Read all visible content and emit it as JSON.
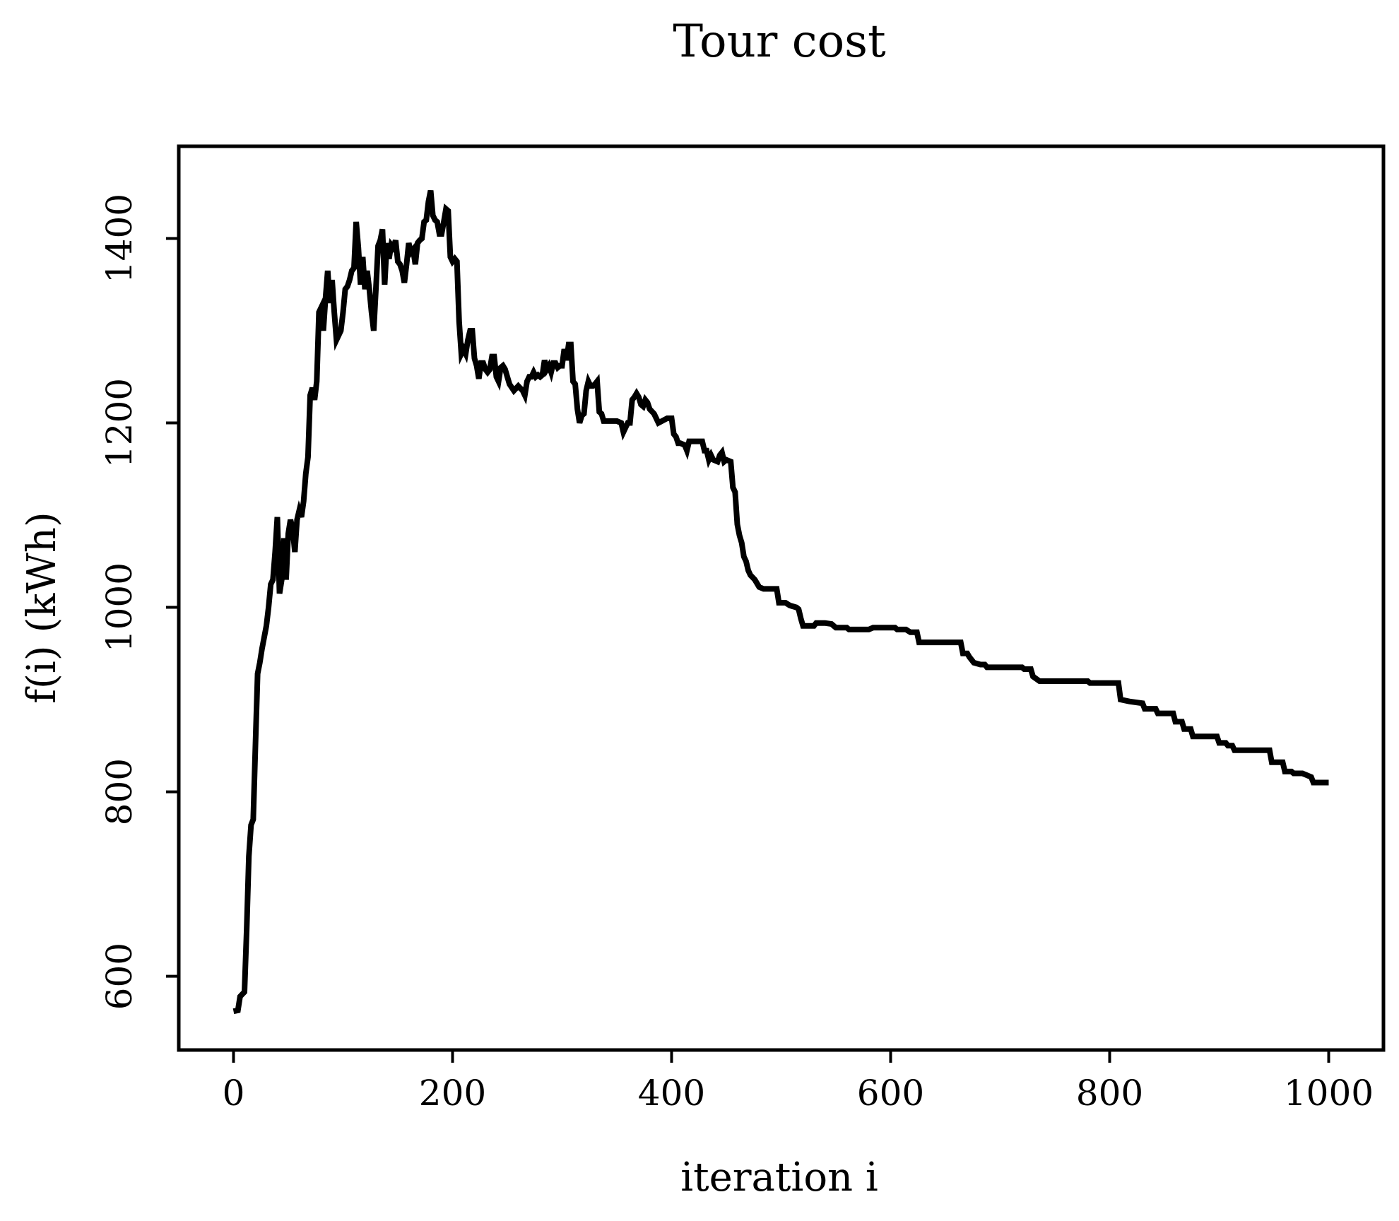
{
  "chart_data": {
    "type": "line",
    "title": "Tour cost",
    "xlabel": "iteration i",
    "ylabel": "f(i) (kWh)",
    "xlim": [
      -50,
      1050
    ],
    "ylim": [
      520,
      1500
    ],
    "xticks": [
      0,
      200,
      400,
      600,
      800,
      1000
    ],
    "yticks": [
      600,
      800,
      1000,
      1200,
      1400
    ],
    "grid": false,
    "colors": {
      "line": "#000000",
      "axes": "#000000"
    },
    "series": [
      {
        "points": [
          [
            0,
            562
          ],
          [
            4,
            563
          ],
          [
            6,
            578
          ],
          [
            10,
            583
          ],
          [
            12,
            650
          ],
          [
            14,
            730
          ],
          [
            16,
            764
          ],
          [
            18,
            770
          ],
          [
            20,
            850
          ],
          [
            22,
            928
          ],
          [
            24,
            940
          ],
          [
            26,
            955
          ],
          [
            30,
            980
          ],
          [
            32,
            1000
          ],
          [
            34,
            1025
          ],
          [
            36,
            1030
          ],
          [
            38,
            1060
          ],
          [
            40,
            1098
          ],
          [
            42,
            1015
          ],
          [
            44,
            1030
          ],
          [
            46,
            1075
          ],
          [
            48,
            1030
          ],
          [
            50,
            1080
          ],
          [
            52,
            1095
          ],
          [
            54,
            1085
          ],
          [
            56,
            1060
          ],
          [
            58,
            1095
          ],
          [
            60,
            1105
          ],
          [
            62,
            1098
          ],
          [
            64,
            1115
          ],
          [
            66,
            1145
          ],
          [
            68,
            1163
          ],
          [
            70,
            1230
          ],
          [
            72,
            1238
          ],
          [
            74,
            1225
          ],
          [
            76,
            1245
          ],
          [
            78,
            1320
          ],
          [
            80,
            1325
          ],
          [
            82,
            1300
          ],
          [
            84,
            1335
          ],
          [
            86,
            1365
          ],
          [
            88,
            1330
          ],
          [
            90,
            1355
          ],
          [
            92,
            1320
          ],
          [
            94,
            1290
          ],
          [
            96,
            1295
          ],
          [
            98,
            1300
          ],
          [
            100,
            1320
          ],
          [
            102,
            1345
          ],
          [
            104,
            1348
          ],
          [
            106,
            1355
          ],
          [
            108,
            1365
          ],
          [
            110,
            1368
          ],
          [
            112,
            1418
          ],
          [
            114,
            1390
          ],
          [
            116,
            1350
          ],
          [
            118,
            1380
          ],
          [
            120,
            1345
          ],
          [
            122,
            1365
          ],
          [
            124,
            1345
          ],
          [
            126,
            1320
          ],
          [
            128,
            1300
          ],
          [
            130,
            1345
          ],
          [
            132,
            1392
          ],
          [
            134,
            1398
          ],
          [
            136,
            1410
          ],
          [
            138,
            1350
          ],
          [
            140,
            1395
          ],
          [
            142,
            1378
          ],
          [
            144,
            1393
          ],
          [
            146,
            1390
          ],
          [
            148,
            1398
          ],
          [
            150,
            1375
          ],
          [
            152,
            1372
          ],
          [
            154,
            1365
          ],
          [
            156,
            1352
          ],
          [
            158,
            1372
          ],
          [
            160,
            1395
          ],
          [
            162,
            1385
          ],
          [
            164,
            1388
          ],
          [
            166,
            1372
          ],
          [
            168,
            1395
          ],
          [
            170,
            1398
          ],
          [
            172,
            1400
          ],
          [
            174,
            1418
          ],
          [
            176,
            1420
          ],
          [
            178,
            1440
          ],
          [
            180,
            1452
          ],
          [
            182,
            1425
          ],
          [
            184,
            1420
          ],
          [
            186,
            1418
          ],
          [
            188,
            1405
          ],
          [
            190,
            1405
          ],
          [
            192,
            1418
          ],
          [
            194,
            1432
          ],
          [
            196,
            1430
          ],
          [
            198,
            1380
          ],
          [
            200,
            1375
          ],
          [
            202,
            1378
          ],
          [
            204,
            1375
          ],
          [
            206,
            1310
          ],
          [
            208,
            1275
          ],
          [
            210,
            1280
          ],
          [
            212,
            1275
          ],
          [
            214,
            1290
          ],
          [
            216,
            1300
          ],
          [
            218,
            1300
          ],
          [
            220,
            1270
          ],
          [
            222,
            1262
          ],
          [
            224,
            1248
          ],
          [
            226,
            1265
          ],
          [
            228,
            1265
          ],
          [
            230,
            1258
          ],
          [
            232,
            1255
          ],
          [
            234,
            1258
          ],
          [
            236,
            1272
          ],
          [
            238,
            1272
          ],
          [
            240,
            1250
          ],
          [
            242,
            1245
          ],
          [
            244,
            1260
          ],
          [
            246,
            1262
          ],
          [
            248,
            1258
          ],
          [
            250,
            1250
          ],
          [
            252,
            1242
          ],
          [
            256,
            1235
          ],
          [
            260,
            1240
          ],
          [
            264,
            1235
          ],
          [
            266,
            1230
          ],
          [
            268,
            1245
          ],
          [
            270,
            1250
          ],
          [
            272,
            1250
          ],
          [
            274,
            1255
          ],
          [
            276,
            1250
          ],
          [
            278,
            1252
          ],
          [
            280,
            1250
          ],
          [
            282,
            1252
          ],
          [
            284,
            1268
          ],
          [
            286,
            1258
          ],
          [
            288,
            1262
          ],
          [
            290,
            1255
          ],
          [
            292,
            1265
          ],
          [
            294,
            1265
          ],
          [
            296,
            1260
          ],
          [
            298,
            1262
          ],
          [
            300,
            1262
          ],
          [
            302,
            1280
          ],
          [
            304,
            1268
          ],
          [
            306,
            1285
          ],
          [
            308,
            1285
          ],
          [
            310,
            1245
          ],
          [
            312,
            1242
          ],
          [
            314,
            1215
          ],
          [
            316,
            1200
          ],
          [
            318,
            1208
          ],
          [
            320,
            1210
          ],
          [
            322,
            1235
          ],
          [
            324,
            1245
          ],
          [
            326,
            1240
          ],
          [
            328,
            1240
          ],
          [
            330,
            1242
          ],
          [
            332,
            1245
          ],
          [
            334,
            1212
          ],
          [
            336,
            1210
          ],
          [
            338,
            1202
          ],
          [
            350,
            1202
          ],
          [
            354,
            1200
          ],
          [
            356,
            1190
          ],
          [
            360,
            1200
          ],
          [
            362,
            1200
          ],
          [
            364,
            1225
          ],
          [
            366,
            1228
          ],
          [
            368,
            1232
          ],
          [
            370,
            1228
          ],
          [
            372,
            1220
          ],
          [
            374,
            1218
          ],
          [
            376,
            1225
          ],
          [
            378,
            1222
          ],
          [
            380,
            1215
          ],
          [
            384,
            1210
          ],
          [
            388,
            1200
          ],
          [
            396,
            1205
          ],
          [
            400,
            1205
          ],
          [
            402,
            1188
          ],
          [
            404,
            1185
          ],
          [
            406,
            1178
          ],
          [
            408,
            1178
          ],
          [
            412,
            1176
          ],
          [
            414,
            1170
          ],
          [
            416,
            1180
          ],
          [
            428,
            1180
          ],
          [
            430,
            1170
          ],
          [
            432,
            1170
          ],
          [
            434,
            1160
          ],
          [
            436,
            1165
          ],
          [
            438,
            1160
          ],
          [
            442,
            1158
          ],
          [
            444,
            1165
          ],
          [
            446,
            1168
          ],
          [
            448,
            1158
          ],
          [
            450,
            1160
          ],
          [
            454,
            1158
          ],
          [
            456,
            1130
          ],
          [
            458,
            1125
          ],
          [
            460,
            1090
          ],
          [
            462,
            1078
          ],
          [
            464,
            1070
          ],
          [
            466,
            1055
          ],
          [
            468,
            1050
          ],
          [
            470,
            1040
          ],
          [
            472,
            1035
          ],
          [
            476,
            1030
          ],
          [
            480,
            1022
          ],
          [
            484,
            1020
          ],
          [
            496,
            1020
          ],
          [
            498,
            1005
          ],
          [
            504,
            1005
          ],
          [
            508,
            1002
          ],
          [
            514,
            1000
          ],
          [
            516,
            998
          ],
          [
            518,
            988
          ],
          [
            520,
            980
          ],
          [
            530,
            980
          ],
          [
            532,
            983
          ],
          [
            540,
            983
          ],
          [
            546,
            982
          ],
          [
            548,
            980
          ],
          [
            550,
            978
          ],
          [
            560,
            978
          ],
          [
            562,
            976
          ],
          [
            580,
            976
          ],
          [
            584,
            978
          ],
          [
            604,
            978
          ],
          [
            606,
            976
          ],
          [
            614,
            976
          ],
          [
            618,
            973
          ],
          [
            624,
            973
          ],
          [
            626,
            962
          ],
          [
            664,
            962
          ],
          [
            666,
            950
          ],
          [
            670,
            950
          ],
          [
            672,
            946
          ],
          [
            676,
            940
          ],
          [
            682,
            938
          ],
          [
            686,
            938
          ],
          [
            688,
            935
          ],
          [
            720,
            935
          ],
          [
            722,
            933
          ],
          [
            728,
            933
          ],
          [
            730,
            925
          ],
          [
            736,
            920
          ],
          [
            780,
            920
          ],
          [
            782,
            918
          ],
          [
            808,
            918
          ],
          [
            810,
            900
          ],
          [
            818,
            898
          ],
          [
            830,
            896
          ],
          [
            832,
            890
          ],
          [
            842,
            890
          ],
          [
            844,
            885
          ],
          [
            858,
            885
          ],
          [
            860,
            876
          ],
          [
            866,
            876
          ],
          [
            868,
            868
          ],
          [
            874,
            868
          ],
          [
            876,
            860
          ],
          [
            898,
            860
          ],
          [
            900,
            853
          ],
          [
            906,
            853
          ],
          [
            908,
            850
          ],
          [
            912,
            850
          ],
          [
            914,
            845
          ],
          [
            946,
            845
          ],
          [
            948,
            832
          ],
          [
            958,
            832
          ],
          [
            960,
            822
          ],
          [
            966,
            822
          ],
          [
            968,
            820
          ],
          [
            976,
            820
          ],
          [
            980,
            818
          ],
          [
            984,
            816
          ],
          [
            986,
            810
          ],
          [
            1000,
            810
          ]
        ]
      }
    ]
  }
}
